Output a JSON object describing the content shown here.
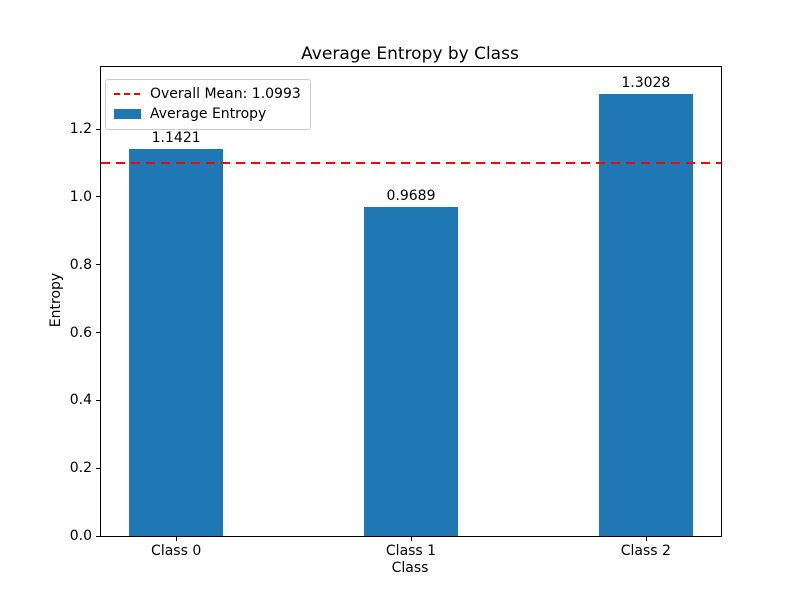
{
  "title": "Average Entropy by Class",
  "axes": {
    "xlabel": "Class",
    "ylabel": "Entropy"
  },
  "legend": {
    "items": [
      {
        "label": "Overall Mean: 1.0993",
        "sample": "red-dashed-line",
        "color": "#ff0000"
      },
      {
        "label": "Average Entropy",
        "sample": "blue-patch",
        "color": "#1f77b4"
      }
    ]
  },
  "chart_data": {
    "type": "bar",
    "title": "Average Entropy by Class",
    "xlabel": "Class",
    "ylabel": "Entropy",
    "categories": [
      "Class 0",
      "Class 1",
      "Class 2"
    ],
    "series": [
      {
        "name": "Average Entropy",
        "values": [
          1.1421,
          0.9689,
          1.3028
        ]
      }
    ],
    "bar_value_labels": [
      "1.1421",
      "0.9689",
      "1.3028"
    ],
    "mean_line": {
      "value": 1.0993,
      "label": "Overall Mean: 1.0993",
      "style": "dashed",
      "color": "#ff0000"
    },
    "yticks": [
      "0.0",
      "0.2",
      "0.4",
      "0.6",
      "0.8",
      "1.0",
      "1.2"
    ],
    "ytick_values": [
      0.0,
      0.2,
      0.4,
      0.6,
      0.8,
      1.0,
      1.2
    ],
    "ylim": [
      0,
      1.383
    ],
    "xlim": [
      -0.32,
      2.32
    ],
    "bar_width_units": 0.4,
    "bar_color": "#1f77b4",
    "grid": false,
    "legend_position": "upper left"
  },
  "colors": {
    "bar": "#1f77b4",
    "mean_line": "#ff0000",
    "text": "#000000",
    "legend_border": "#cccccc"
  }
}
